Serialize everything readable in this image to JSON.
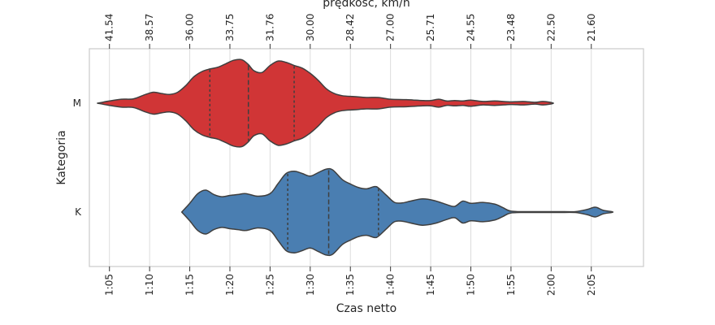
{
  "chart_data": {
    "type": "violin",
    "title": "",
    "xlabel": "Czas netto",
    "ylabel": "Kategoria",
    "x2label": "prędkość, km/h",
    "xlim": [
      62.5,
      131.5
    ],
    "grid": "vertical",
    "x_ticks": [
      {
        "value": 65,
        "label": "1:05"
      },
      {
        "value": 70,
        "label": "1:10"
      },
      {
        "value": 75,
        "label": "1:15"
      },
      {
        "value": 80,
        "label": "1:20"
      },
      {
        "value": 85,
        "label": "1:25"
      },
      {
        "value": 90,
        "label": "1:30"
      },
      {
        "value": 95,
        "label": "1:35"
      },
      {
        "value": 100,
        "label": "1:40"
      },
      {
        "value": 105,
        "label": "1:45"
      },
      {
        "value": 110,
        "label": "1:50"
      },
      {
        "value": 115,
        "label": "1:55"
      },
      {
        "value": 120,
        "label": "2:00"
      },
      {
        "value": 125,
        "label": "2:05"
      }
    ],
    "x2_ticks": [
      {
        "value": 65,
        "label": "41.54"
      },
      {
        "value": 70,
        "label": "38.57"
      },
      {
        "value": 75,
        "label": "36.00"
      },
      {
        "value": 80,
        "label": "33.75"
      },
      {
        "value": 85,
        "label": "31.76"
      },
      {
        "value": 90,
        "label": "30.00"
      },
      {
        "value": 95,
        "label": "28.42"
      },
      {
        "value": 100,
        "label": "27.00"
      },
      {
        "value": 105,
        "label": "25.71"
      },
      {
        "value": 110,
        "label": "24.55"
      },
      {
        "value": 115,
        "label": "23.48"
      },
      {
        "value": 120,
        "label": "22.50"
      },
      {
        "value": 125,
        "label": "21.60"
      }
    ],
    "categories": [
      "M",
      "K"
    ],
    "series": [
      {
        "category": "M",
        "color": "#d03536",
        "quartiles": [
          77.5,
          82.3,
          88.0
        ],
        "profile": [
          [
            63.5,
            0.0
          ],
          [
            65.0,
            0.05
          ],
          [
            66.5,
            0.09
          ],
          [
            68.0,
            0.1
          ],
          [
            69.5,
            0.2
          ],
          [
            70.5,
            0.25
          ],
          [
            71.5,
            0.22
          ],
          [
            72.5,
            0.2
          ],
          [
            73.5,
            0.25
          ],
          [
            74.5,
            0.4
          ],
          [
            75.5,
            0.6
          ],
          [
            76.5,
            0.72
          ],
          [
            77.5,
            0.78
          ],
          [
            78.5,
            0.82
          ],
          [
            79.5,
            0.9
          ],
          [
            80.5,
            0.98
          ],
          [
            81.5,
            0.99
          ],
          [
            82.3,
            0.88
          ],
          [
            83.0,
            0.74
          ],
          [
            84.0,
            0.7
          ],
          [
            85.0,
            0.86
          ],
          [
            86.0,
            0.96
          ],
          [
            87.0,
            0.93
          ],
          [
            88.0,
            0.86
          ],
          [
            89.0,
            0.8
          ],
          [
            90.0,
            0.68
          ],
          [
            91.0,
            0.52
          ],
          [
            92.0,
            0.33
          ],
          [
            93.0,
            0.22
          ],
          [
            94.0,
            0.17
          ],
          [
            95.5,
            0.15
          ],
          [
            97.0,
            0.13
          ],
          [
            98.5,
            0.13
          ],
          [
            100.0,
            0.09
          ],
          [
            102.0,
            0.08
          ],
          [
            104.0,
            0.06
          ],
          [
            105.0,
            0.06
          ],
          [
            106.0,
            0.09
          ],
          [
            107.0,
            0.05
          ],
          [
            108.0,
            0.06
          ],
          [
            109.0,
            0.05
          ],
          [
            110.0,
            0.07
          ],
          [
            111.5,
            0.04
          ],
          [
            113.0,
            0.05
          ],
          [
            115.0,
            0.03
          ],
          [
            116.5,
            0.04
          ],
          [
            118.0,
            0.02
          ],
          [
            119.0,
            0.04
          ],
          [
            120.3,
            0.0
          ]
        ]
      },
      {
        "category": "K",
        "color": "#4a7eb1",
        "quartiles": [
          87.2,
          92.3,
          98.5
        ],
        "profile": [
          [
            74.0,
            0.0
          ],
          [
            75.0,
            0.2
          ],
          [
            76.0,
            0.42
          ],
          [
            77.0,
            0.5
          ],
          [
            78.0,
            0.4
          ],
          [
            79.0,
            0.35
          ],
          [
            80.0,
            0.38
          ],
          [
            81.0,
            0.4
          ],
          [
            82.0,
            0.42
          ],
          [
            83.5,
            0.36
          ],
          [
            85.0,
            0.42
          ],
          [
            86.0,
            0.65
          ],
          [
            87.0,
            0.88
          ],
          [
            88.0,
            0.93
          ],
          [
            89.0,
            0.88
          ],
          [
            90.0,
            0.82
          ],
          [
            91.0,
            0.9
          ],
          [
            92.0,
            0.98
          ],
          [
            92.8,
            0.96
          ],
          [
            94.0,
            0.74
          ],
          [
            95.0,
            0.64
          ],
          [
            96.0,
            0.56
          ],
          [
            97.0,
            0.53
          ],
          [
            98.0,
            0.58
          ],
          [
            98.5,
            0.55
          ],
          [
            99.5,
            0.38
          ],
          [
            100.5,
            0.22
          ],
          [
            101.5,
            0.21
          ],
          [
            102.5,
            0.25
          ],
          [
            104.0,
            0.3
          ],
          [
            105.5,
            0.26
          ],
          [
            107.0,
            0.17
          ],
          [
            108.0,
            0.13
          ],
          [
            109.0,
            0.25
          ],
          [
            110.0,
            0.2
          ],
          [
            111.5,
            0.22
          ],
          [
            113.0,
            0.18
          ],
          [
            114.0,
            0.1
          ],
          [
            115.0,
            0.02
          ],
          [
            117.0,
            0.01
          ],
          [
            119.0,
            0.01
          ],
          [
            121.0,
            0.01
          ],
          [
            123.0,
            0.01
          ],
          [
            124.5,
            0.06
          ],
          [
            125.5,
            0.11
          ],
          [
            126.5,
            0.04
          ],
          [
            127.7,
            0.0
          ]
        ]
      }
    ]
  }
}
